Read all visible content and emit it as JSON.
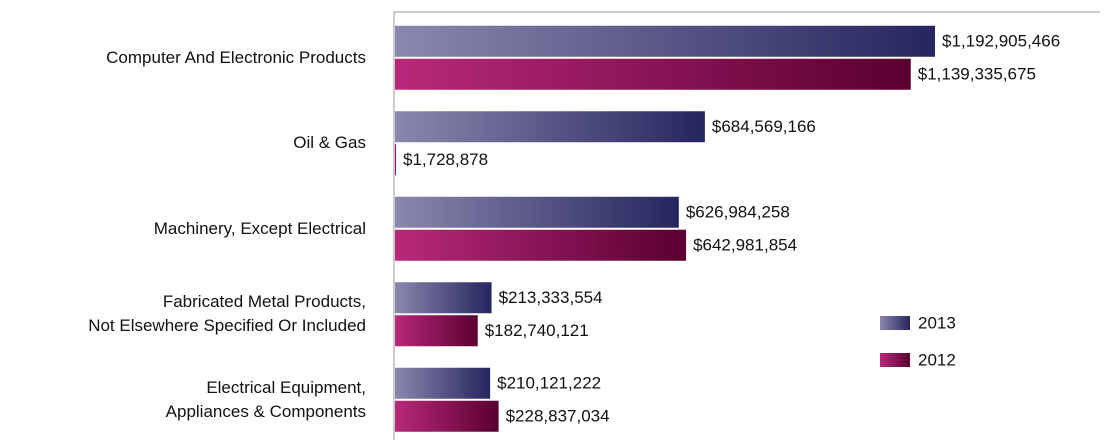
{
  "chart_data": {
    "type": "hbar",
    "categories": [
      "Computer And Electronic Products",
      "Oil & Gas",
      "Machinery, Except Electrical",
      "Fabricated Metal Products,\nNot Elsewhere Specified Or Included",
      "Electrical Equipment,\nAppliances & Components"
    ],
    "series": [
      {
        "name": "2013",
        "color": "#26265f",
        "gradient_start": "#8a88ae",
        "values": [
          1192905466,
          684569166,
          626984258,
          213333554,
          210121222
        ],
        "value_labels": [
          "$1,192,905,466",
          "$684,569,166",
          "$626,984,258",
          "$213,333,554",
          "$210,121,222"
        ]
      },
      {
        "name": "2012",
        "color": "#5a0030",
        "gradient_start": "#b8297a",
        "values": [
          1139335675,
          1728878,
          642981854,
          182740121,
          228837034
        ],
        "value_labels": [
          "$1,139,335,675",
          "$1,728,878",
          "$642,981,854",
          "$182,740,121",
          "$228,837,034"
        ]
      }
    ],
    "legend": "lower right"
  }
}
